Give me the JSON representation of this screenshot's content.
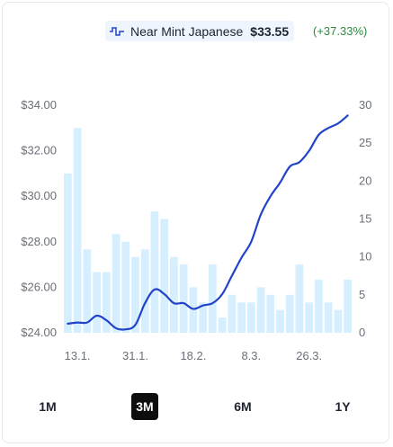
{
  "legend": {
    "name": "Near Mint Japanese",
    "price": "$33.55",
    "change": "(+37.33%)",
    "icon": "step-line-icon",
    "line_color": "#2143c8",
    "bar_color": "#d6efff",
    "change_color": "#2e8a3e"
  },
  "ranges": [
    {
      "label": "1M",
      "active": false
    },
    {
      "label": "3M",
      "active": true
    },
    {
      "label": "6M",
      "active": false
    },
    {
      "label": "1Y",
      "active": false
    }
  ],
  "chart_data": {
    "type": "line",
    "title": "",
    "grid": false,
    "legend_position": "top-right",
    "x_ticks": [
      {
        "label": "13.1.",
        "index": 1
      },
      {
        "label": "31.1.",
        "index": 7
      },
      {
        "label": "18.2.",
        "index": 13
      },
      {
        "label": "8.3.",
        "index": 19
      },
      {
        "label": "26.3.",
        "index": 25
      }
    ],
    "y_left": {
      "ticks": [
        "$24.00",
        "$26.00",
        "$28.00",
        "$30.00",
        "$32.00",
        "$34.00"
      ],
      "range": [
        24,
        34
      ]
    },
    "y_right": {
      "ticks": [
        "0",
        "5",
        "10",
        "15",
        "20",
        "25",
        "30"
      ],
      "range": [
        0,
        30
      ]
    },
    "bars": {
      "axis": "right",
      "values": [
        21,
        27,
        11,
        8,
        8,
        13,
        12,
        10,
        11,
        16,
        15,
        10,
        9,
        6,
        4,
        9,
        2,
        5,
        4,
        4,
        6,
        5,
        3,
        5,
        9,
        4,
        7,
        4,
        3,
        7
      ]
    },
    "series": [
      {
        "axis": "left",
        "x": [
          0,
          1,
          2,
          3,
          4,
          5,
          6,
          7,
          8,
          9,
          10,
          11,
          12,
          13,
          14,
          15,
          16,
          17,
          18,
          19,
          20,
          21,
          22,
          23,
          24,
          25,
          26,
          27,
          28,
          29
        ],
        "values": [
          24.4,
          24.45,
          24.45,
          24.75,
          24.55,
          24.2,
          24.15,
          24.35,
          25.3,
          25.9,
          25.7,
          25.3,
          25.3,
          25.05,
          25.2,
          25.3,
          25.7,
          26.5,
          27.3,
          28.0,
          29.2,
          30.0,
          30.6,
          31.3,
          31.5,
          32.0,
          32.7,
          33.0,
          33.2,
          33.55
        ]
      }
    ]
  }
}
